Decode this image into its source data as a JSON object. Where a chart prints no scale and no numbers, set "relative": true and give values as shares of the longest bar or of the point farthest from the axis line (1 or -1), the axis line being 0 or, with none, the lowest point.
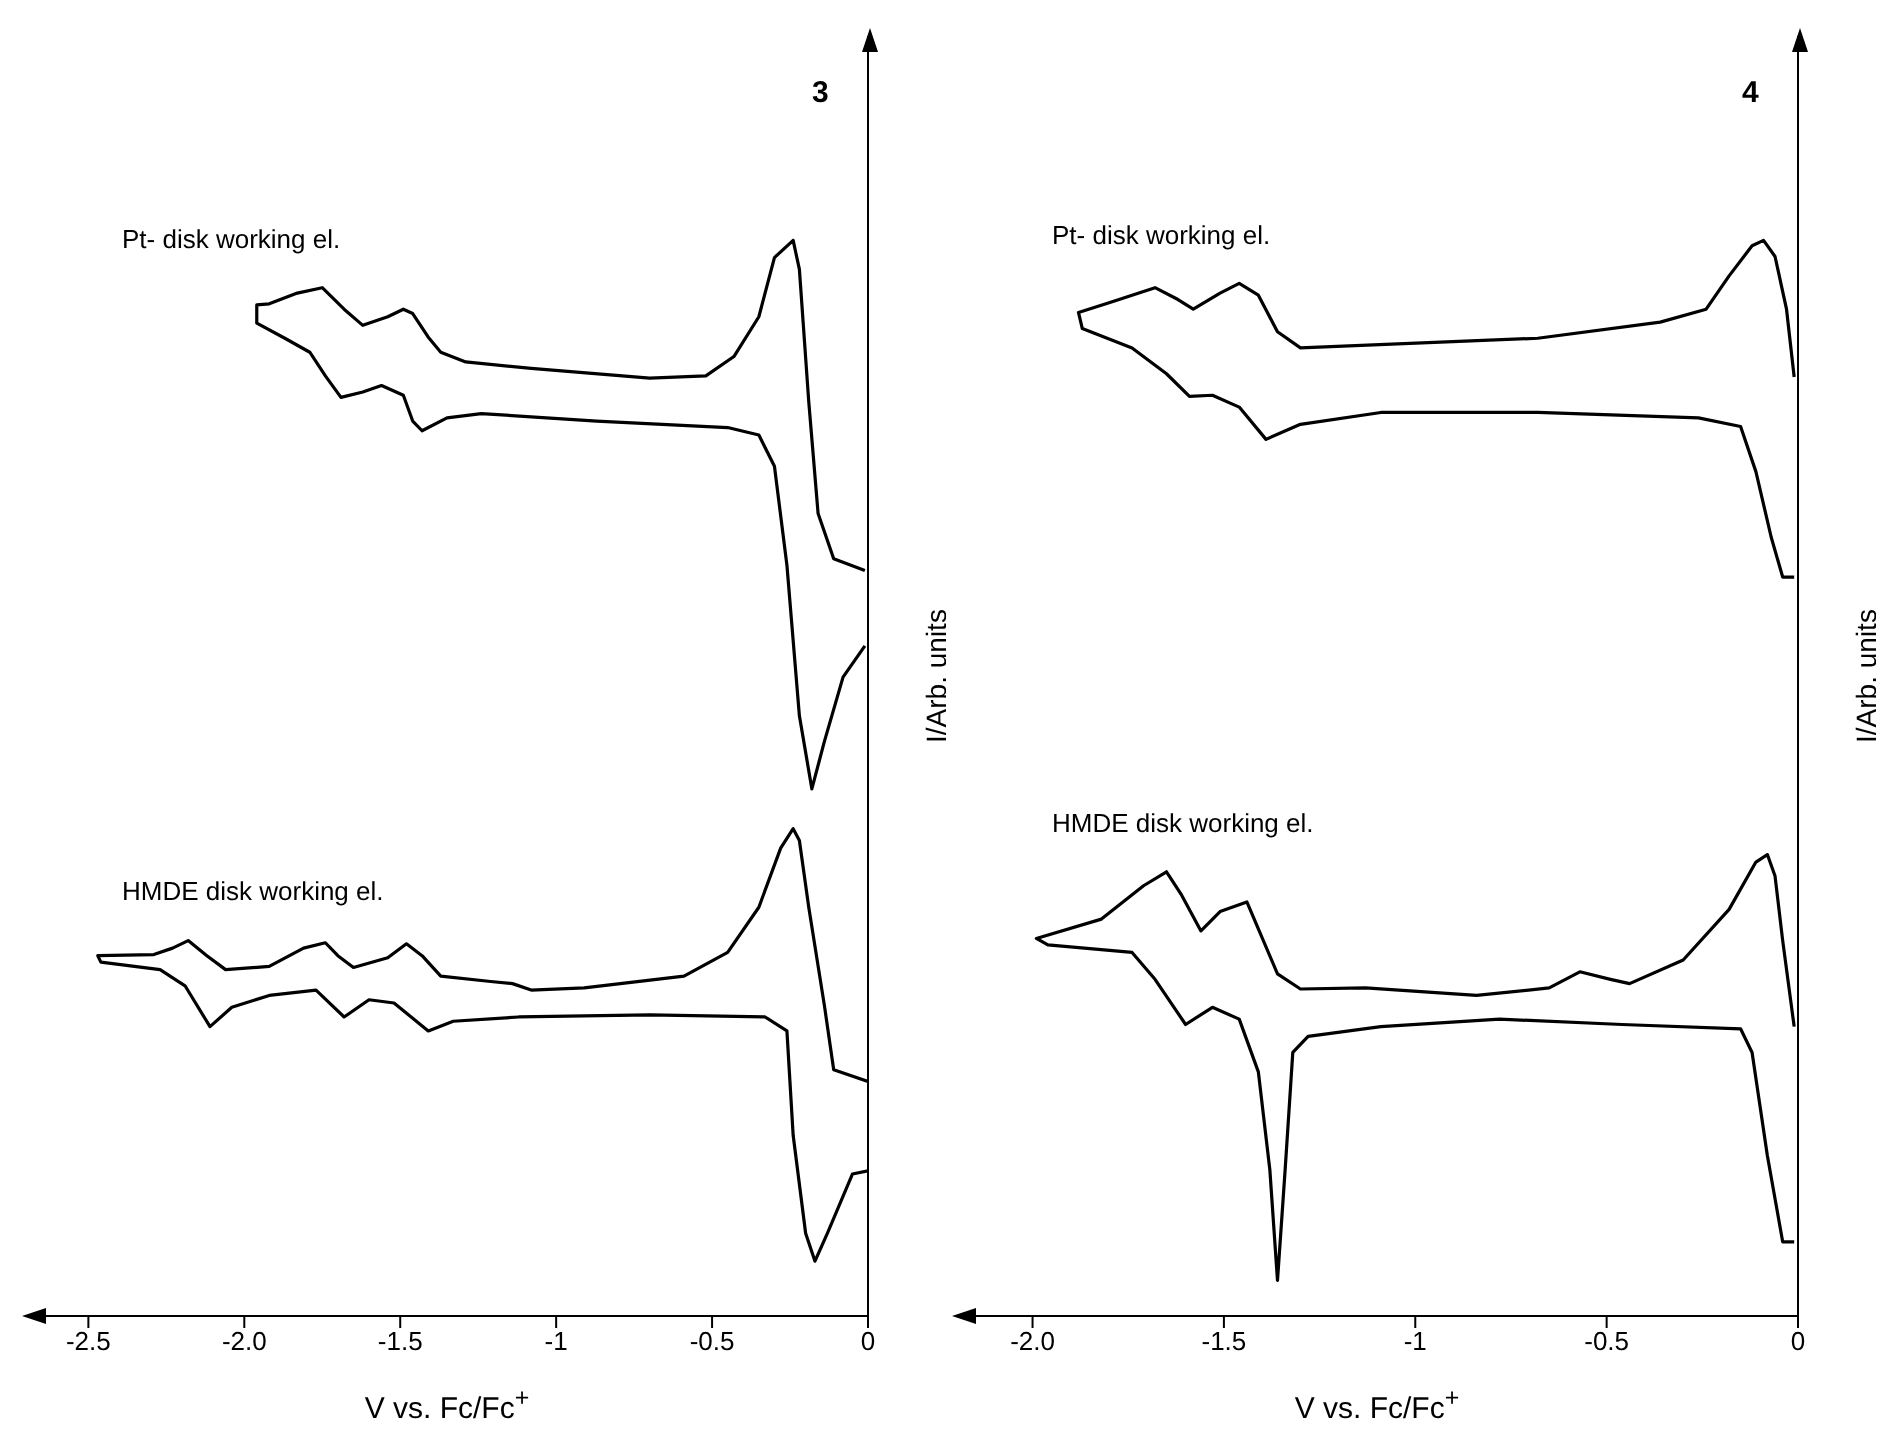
{
  "chart_data": [
    {
      "type": "line",
      "title": "3",
      "xlabel": "V vs. Fc/Fc$^{+}$",
      "ylabel": "I/Arb. units",
      "relative": true,
      "xlim": [
        -2.7,
        0
      ],
      "xticks": [
        -2.5,
        {
          "value": -2,
          "label": "-2.0"
        },
        -1.5,
        -1,
        -0.5,
        0
      ],
      "series": [
        {
          "name": "Pt- disk working el.",
          "color": "#000000",
          "x": [
            -0.01,
            -0.11,
            -0.16,
            -0.19,
            -0.22,
            -0.24,
            -0.3,
            -0.35,
            -0.43,
            -0.52,
            -0.7,
            -1.08,
            -1.29,
            -1.37,
            -1.41,
            -1.46,
            -1.49,
            -1.54,
            -1.62,
            -1.68,
            -1.75,
            -1.83,
            -1.92,
            -1.96,
            -1.96,
            -1.87,
            -1.79,
            -1.74,
            -1.69,
            -1.62,
            -1.56,
            -1.49,
            -1.46,
            -1.43,
            -1.35,
            -1.24,
            -0.87,
            -0.45,
            -0.35,
            -0.3,
            -0.26,
            -0.22,
            -0.18,
            -0.14,
            -0.08,
            -0.01
          ],
          "values": [
            0.693,
            0.704,
            0.746,
            0.85,
            0.973,
            1,
            0.984,
            0.929,
            0.892,
            0.874,
            0.872,
            0.881,
            0.887,
            0.896,
            0.91,
            0.932,
            0.936,
            0.929,
            0.921,
            0.936,
            0.956,
            0.951,
            0.941,
            0.94,
            0.923,
            0.909,
            0.896,
            0.874,
            0.854,
            0.859,
            0.865,
            0.856,
            0.832,
            0.823,
            0.835,
            0.839,
            0.832,
            0.826,
            0.819,
            0.79,
            0.698,
            0.558,
            0.49,
            0.534,
            0.594,
            0.623
          ]
        },
        {
          "name": "HMDE disk working el.",
          "color": "#000000",
          "x": [
            0,
            -0.11,
            -0.14,
            -0.19,
            -0.22,
            -0.24,
            -0.28,
            -0.35,
            -0.45,
            -0.59,
            -0.91,
            -1.08,
            -1.14,
            -1.21,
            -1.37,
            -1.43,
            -1.48,
            -1.54,
            -1.65,
            -1.7,
            -1.74,
            -1.81,
            -1.92,
            -2.06,
            -2.12,
            -2.18,
            -2.23,
            -2.29,
            -2.47,
            -2.46,
            -2.27,
            -2.19,
            -2.11,
            -2.04,
            -1.92,
            -1.77,
            -1.68,
            -1.6,
            -1.52,
            -1.41,
            -1.33,
            -1.12,
            -0.7,
            -0.33,
            -0.26,
            -0.24,
            -0.2,
            -0.17,
            -0.13,
            -0.05,
            0
          ],
          "values": [
            0.218,
            0.229,
            0.289,
            0.38,
            0.442,
            0.453,
            0.435,
            0.38,
            0.338,
            0.316,
            0.305,
            0.303,
            0.309,
            0.311,
            0.316,
            0.335,
            0.346,
            0.333,
            0.324,
            0.335,
            0.347,
            0.342,
            0.325,
            0.322,
            0.335,
            0.349,
            0.342,
            0.336,
            0.335,
            0.329,
            0.322,
            0.307,
            0.269,
            0.287,
            0.298,
            0.303,
            0.278,
            0.294,
            0.291,
            0.265,
            0.274,
            0.278,
            0.28,
            0.278,
            0.265,
            0.168,
            0.077,
            0.051,
            0.077,
            0.132,
            0.135
          ]
        }
      ]
    },
    {
      "type": "line",
      "title": "4",
      "xlabel": "V vs. Fc/Fc$^{+}$",
      "ylabel": "I/Arb. units",
      "relative": true,
      "xlim": [
        -2.2,
        0
      ],
      "xticks": [
        {
          "value": -2,
          "label": "-2.0"
        },
        -1.5,
        -1,
        -0.5,
        0
      ],
      "series": [
        {
          "name": "Pt- disk working el.",
          "color": "#000000",
          "x": [
            -0.01,
            -0.03,
            -0.06,
            -0.09,
            -0.12,
            -0.18,
            -0.24,
            -0.36,
            -0.68,
            -1.03,
            -1.3,
            -1.36,
            -1.41,
            -1.46,
            -1.51,
            -1.58,
            -1.62,
            -1.68,
            -1.8,
            -1.88,
            -1.87,
            -1.74,
            -1.65,
            -1.59,
            -1.53,
            -1.46,
            -1.39,
            -1.3,
            -1.09,
            -0.68,
            -0.26,
            -0.15,
            -0.11,
            -0.07,
            -0.04,
            -0.01
          ],
          "values": [
            0.873,
            0.936,
            0.985,
            1,
            0.995,
            0.967,
            0.936,
            0.924,
            0.909,
            0.904,
            0.9,
            0.915,
            0.949,
            0.96,
            0.951,
            0.936,
            0.945,
            0.956,
            0.942,
            0.933,
            0.918,
            0.9,
            0.876,
            0.855,
            0.856,
            0.845,
            0.815,
            0.829,
            0.84,
            0.84,
            0.835,
            0.827,
            0.785,
            0.724,
            0.687,
            0.687
          ]
        },
        {
          "name": "HMDE disk working el.",
          "color": "#000000",
          "x": [
            -0.01,
            -0.04,
            -0.06,
            -0.08,
            -0.11,
            -0.18,
            -0.3,
            -0.44,
            -0.49,
            -0.57,
            -0.65,
            -0.84,
            -1.13,
            -1.3,
            -1.36,
            -1.41,
            -1.44,
            -1.51,
            -1.56,
            -1.61,
            -1.65,
            -1.71,
            -1.82,
            -1.99,
            -1.96,
            -1.74,
            -1.68,
            -1.6,
            -1.53,
            -1.46,
            -1.41,
            -1.38,
            -1.36,
            -1.34,
            -1.32,
            -1.28,
            -1.09,
            -0.78,
            -0.46,
            -0.15,
            -0.12,
            -0.08,
            -0.04,
            -0.01
          ],
          "values": [
            0.269,
            0.349,
            0.409,
            0.429,
            0.422,
            0.378,
            0.331,
            0.309,
            0.313,
            0.32,
            0.305,
            0.298,
            0.305,
            0.304,
            0.318,
            0.36,
            0.385,
            0.376,
            0.358,
            0.391,
            0.413,
            0.4,
            0.369,
            0.351,
            0.345,
            0.338,
            0.313,
            0.271,
            0.287,
            0.276,
            0.227,
            0.136,
            0.033,
            0.136,
            0.245,
            0.26,
            0.269,
            0.276,
            0.271,
            0.267,
            0.245,
            0.149,
            0.069,
            0.069
          ]
        }
      ]
    }
  ]
}
